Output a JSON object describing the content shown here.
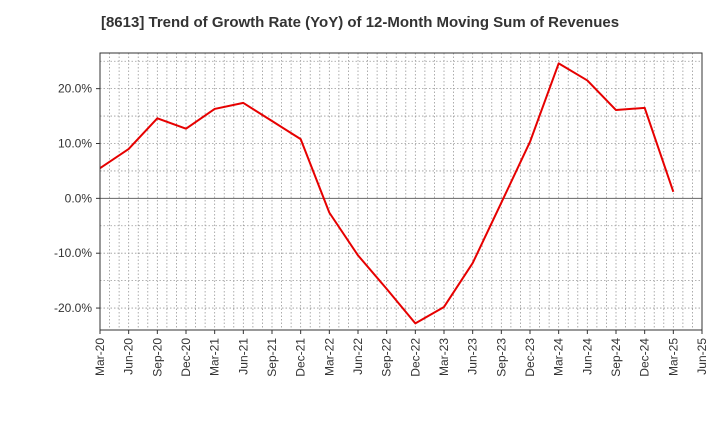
{
  "chart_data": {
    "type": "line",
    "title": "[8613]  Trend of Growth Rate (YoY) of 12-Month Moving Sum of Revenues",
    "xlabel": "",
    "ylabel": "",
    "x": [
      "Mar-20",
      "Jun-20",
      "Sep-20",
      "Dec-20",
      "Mar-21",
      "Jun-21",
      "Sep-21",
      "Dec-21",
      "Mar-22",
      "Jun-22",
      "Sep-22",
      "Dec-22",
      "Mar-23",
      "Jun-23",
      "Sep-23",
      "Dec-23",
      "Mar-24",
      "Jun-24",
      "Sep-24",
      "Dec-24",
      "Mar-25",
      "Jun-25"
    ],
    "series": [
      {
        "color": "#e60000",
        "values": [
          5.5,
          9.0,
          14.6,
          12.7,
          16.3,
          17.4,
          14.1,
          10.8,
          -2.6,
          -10.4,
          -16.5,
          -22.8,
          -19.8,
          -11.8,
          -0.8,
          10.3,
          24.6,
          21.5,
          16.1,
          16.5,
          1.2,
          null
        ]
      }
    ],
    "ylim": [
      -24,
      26.5
    ],
    "yticks": [
      -20,
      -10,
      0,
      10,
      20
    ],
    "ytick_labels": [
      "-20.0%",
      "-10.0%",
      "0.0%",
      "10.0%",
      "20.0%"
    ],
    "grid": true,
    "line_color": "#e60000"
  }
}
